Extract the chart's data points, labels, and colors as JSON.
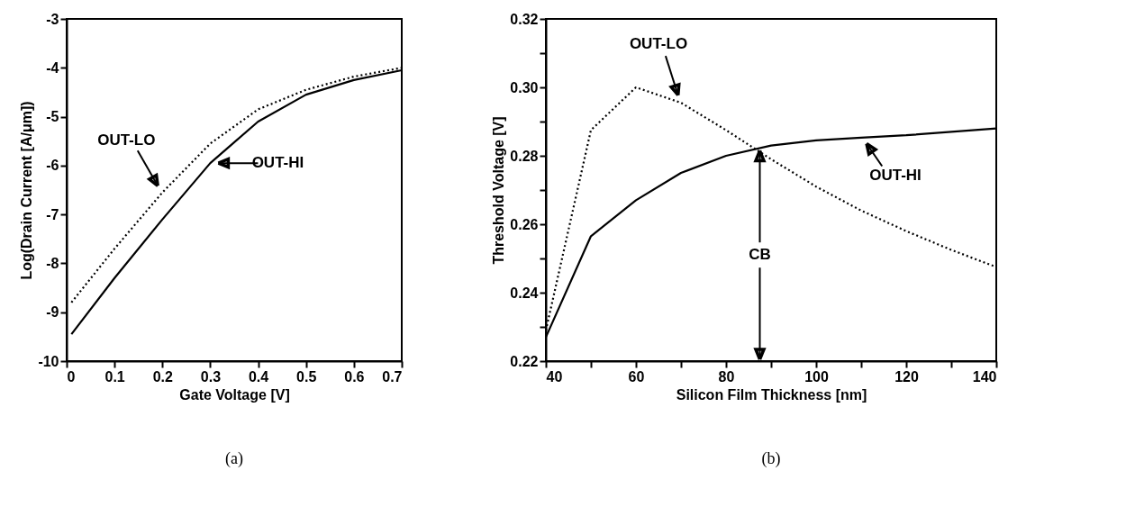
{
  "chart_data": [
    {
      "type": "line",
      "xlabel": "Gate Voltage [V]",
      "ylabel": "Log(Drain Current [A/μm])",
      "x": [
        0.01,
        0.1,
        0.2,
        0.3,
        0.4,
        0.5,
        0.6,
        0.7
      ],
      "series": [
        {
          "name": "OUT-LO",
          "color": "#000000",
          "line_style": "dotted",
          "values": [
            -8.8,
            -7.7,
            -6.55,
            -5.55,
            -4.85,
            -4.45,
            -4.18,
            -4.0
          ]
        },
        {
          "name": "OUT-HI",
          "color": "#000000",
          "line_style": "solid",
          "values": [
            -9.45,
            -8.3,
            -7.1,
            -5.95,
            -5.1,
            -4.55,
            -4.25,
            -4.05
          ]
        }
      ],
      "xlim": [
        0,
        0.7
      ],
      "ylim": [
        -10,
        -3
      ],
      "xticks": [
        0,
        0.1,
        0.2,
        0.3,
        0.4,
        0.5,
        0.6,
        0.7
      ],
      "yticks": [
        -10,
        -9,
        -8,
        -7,
        -6,
        -5,
        -4,
        -3
      ],
      "grid": false,
      "marker": "none",
      "annotations": [
        "(a)"
      ]
    },
    {
      "type": "line",
      "xlabel": "Silicon Film Thickness [nm]",
      "ylabel": "Threshold Voltage [V]",
      "x": [
        40,
        50,
        60,
        70,
        80,
        90,
        100,
        110,
        120,
        130,
        140
      ],
      "series": [
        {
          "name": "OUT-LO",
          "color": "#000000",
          "line_style": "dotted",
          "values": [
            0.229,
            0.2875,
            0.3,
            0.2955,
            0.2875,
            0.279,
            0.271,
            0.264,
            0.258,
            0.2525,
            0.2475
          ]
        },
        {
          "name": "OUT-HI",
          "color": "#000000",
          "line_style": "solid",
          "values": [
            0.227,
            0.2565,
            0.267,
            0.275,
            0.28,
            0.283,
            0.2845,
            0.2853,
            0.286,
            0.287,
            0.288
          ]
        }
      ],
      "xlim": [
        40,
        140
      ],
      "ylim": [
        0.22,
        0.32
      ],
      "xticks": [
        40,
        {
          "value": 50,
          "label": null
        },
        60,
        {
          "value": 70,
          "label": null
        },
        80,
        {
          "value": 90,
          "label": null
        },
        100,
        {
          "value": 110,
          "label": null
        },
        120,
        {
          "value": 130,
          "label": null
        },
        140
      ],
      "yticks": [
        0.22,
        {
          "value": 0.23,
          "label": null
        },
        0.24,
        {
          "value": 0.25,
          "label": null
        },
        0.26,
        {
          "value": 0.27,
          "label": null
        },
        0.28,
        {
          "value": 0.29,
          "label": null
        },
        {
          "value": 0.3,
          "label": "0.30"
        },
        {
          "value": 0.31,
          "label": null
        },
        0.32
      ],
      "grid": false,
      "marker": "none",
      "annotations": [
        {
          "text": "CB",
          "x": 87.5,
          "y": 0.282
        },
        "(b)"
      ]
    }
  ]
}
